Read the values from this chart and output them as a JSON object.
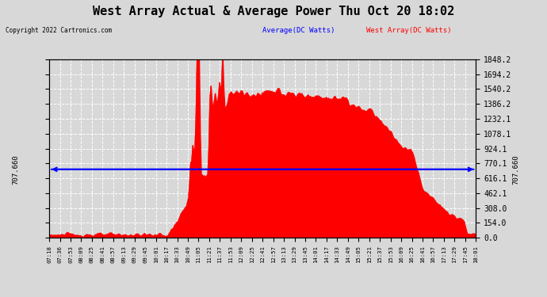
{
  "title": "West Array Actual & Average Power Thu Oct 20 18:02",
  "copyright": "Copyright 2022 Cartronics.com",
  "avg_label": "Average(DC Watts)",
  "west_label": "West Array(DC Watts)",
  "avg_color": "blue",
  "west_color": "red",
  "avg_value": 707.66,
  "ymin": 0.0,
  "ymax": 1848.2,
  "yticks": [
    0.0,
    154.0,
    308.0,
    462.1,
    616.1,
    770.1,
    924.1,
    1078.1,
    1232.1,
    1386.2,
    1540.2,
    1694.2,
    1848.2
  ],
  "yticklabels": [
    "0.0",
    "154.0",
    "308.0",
    "462.1",
    "616.1",
    "770.1",
    "924.1",
    "1078.1",
    "1232.1",
    "1386.2",
    "1540.2",
    "1694.2",
    "1848.2"
  ],
  "background_color": "#d8d8d8",
  "plot_bg": "#d8d8d8",
  "title_fontsize": 11,
  "x_labels": [
    "07:18",
    "07:36",
    "07:53",
    "08:09",
    "08:25",
    "08:41",
    "08:57",
    "09:13",
    "09:29",
    "09:45",
    "10:01",
    "10:17",
    "10:33",
    "10:49",
    "11:05",
    "11:21",
    "11:37",
    "11:53",
    "12:09",
    "12:25",
    "12:41",
    "12:57",
    "13:13",
    "13:29",
    "13:45",
    "14:01",
    "14:17",
    "14:33",
    "14:49",
    "15:05",
    "15:21",
    "15:37",
    "15:53",
    "16:09",
    "16:25",
    "16:41",
    "16:57",
    "17:13",
    "17:29",
    "17:45",
    "18:01"
  ]
}
